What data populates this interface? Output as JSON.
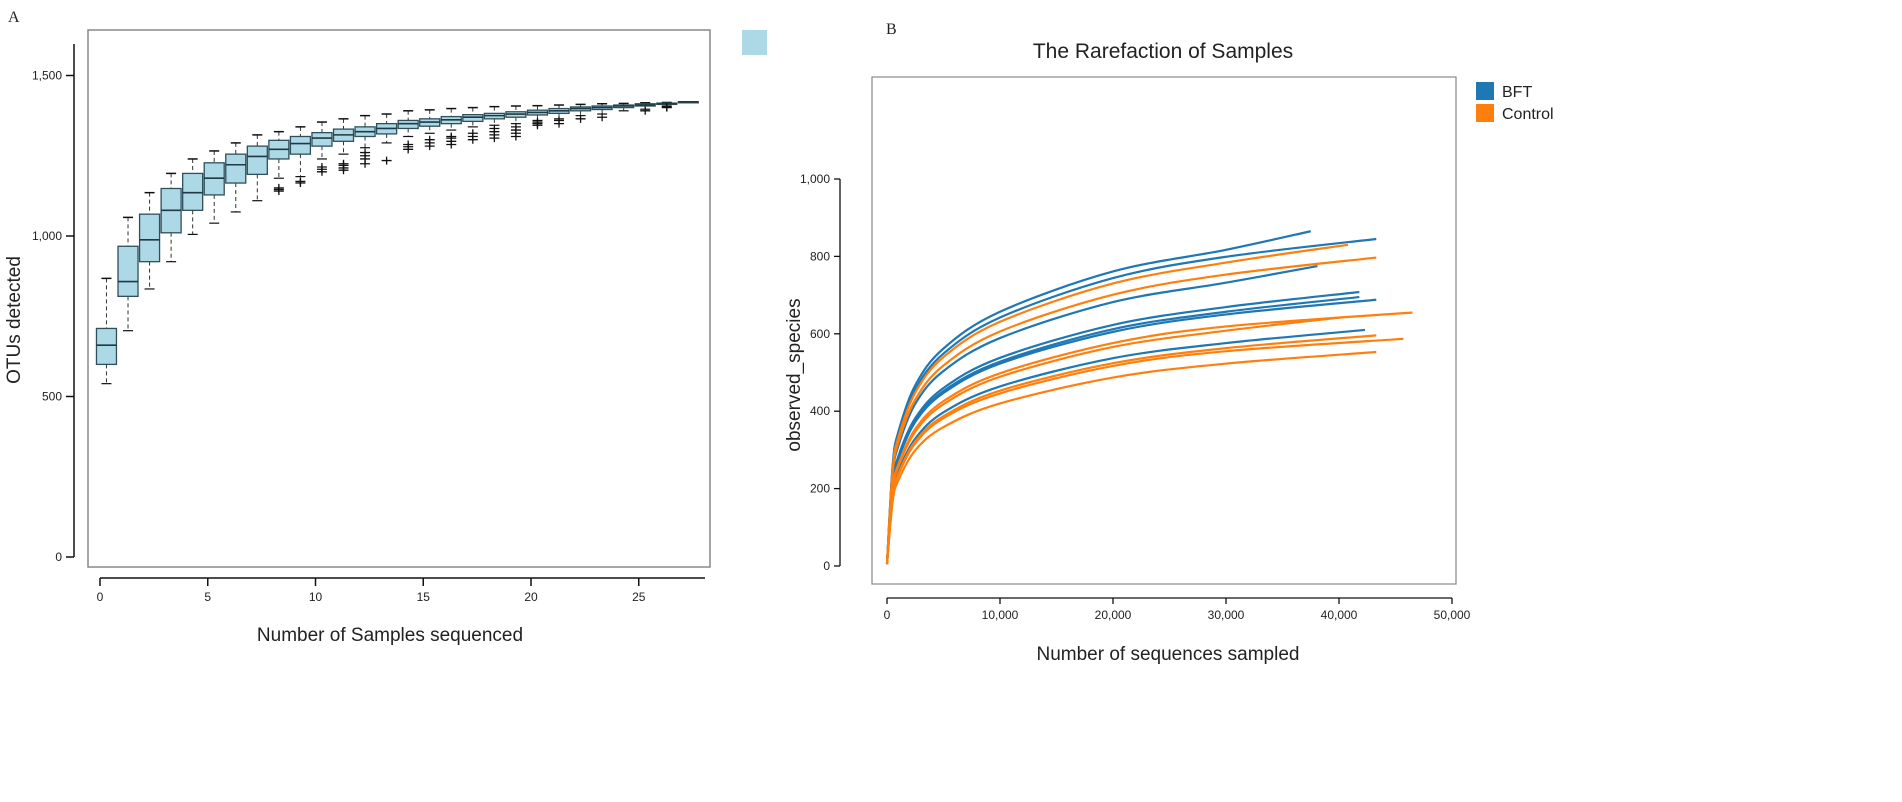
{
  "chart_data": [
    {
      "panel_label": "A",
      "type": "box",
      "title": "",
      "xlabel": "Number of Samples sequenced",
      "ylabel": "OTUs detected",
      "xticks": [
        "0",
        "5",
        "10",
        "15",
        "20",
        "25"
      ],
      "yticks": [
        "0",
        "500",
        "1,000",
        "1,500"
      ],
      "xlim": [
        0,
        28
      ],
      "ylim": [
        0,
        1600
      ],
      "grid": false,
      "box_color": "#add8e6",
      "legend": {
        "position": "top-right",
        "entries": [
          {
            "label": "",
            "color": "#add8e6"
          }
        ]
      },
      "boxes": [
        {
          "x": 0.3,
          "whisker_high": 868,
          "q3": 712,
          "median": 660,
          "q1": 600,
          "whisker_low": 540,
          "outliers": []
        },
        {
          "x": 1.3,
          "whisker_high": 1058,
          "q3": 968,
          "median": 858,
          "q1": 812,
          "whisker_low": 705,
          "outliers": []
        },
        {
          "x": 2.3,
          "whisker_high": 1135,
          "q3": 1068,
          "median": 988,
          "q1": 920,
          "whisker_low": 835,
          "outliers": []
        },
        {
          "x": 3.3,
          "whisker_high": 1195,
          "q3": 1148,
          "median": 1080,
          "q1": 1010,
          "whisker_low": 920,
          "outliers": []
        },
        {
          "x": 4.3,
          "whisker_high": 1240,
          "q3": 1195,
          "median": 1135,
          "q1": 1080,
          "whisker_low": 1005,
          "outliers": []
        },
        {
          "x": 5.3,
          "whisker_high": 1265,
          "q3": 1228,
          "median": 1180,
          "q1": 1128,
          "whisker_low": 1040,
          "outliers": []
        },
        {
          "x": 6.3,
          "whisker_high": 1290,
          "q3": 1255,
          "median": 1222,
          "q1": 1165,
          "whisker_low": 1075,
          "outliers": []
        },
        {
          "x": 7.3,
          "whisker_high": 1315,
          "q3": 1280,
          "median": 1248,
          "q1": 1192,
          "whisker_low": 1110,
          "outliers": []
        },
        {
          "x": 8.3,
          "whisker_high": 1325,
          "q3": 1298,
          "median": 1270,
          "q1": 1240,
          "whisker_low": 1180,
          "outliers": [
            1140,
            1145,
            1150
          ]
        },
        {
          "x": 9.3,
          "whisker_high": 1340,
          "q3": 1310,
          "median": 1288,
          "q1": 1255,
          "whisker_low": 1185,
          "outliers": [
            1165,
            1170
          ]
        },
        {
          "x": 10.3,
          "whisker_high": 1355,
          "q3": 1322,
          "median": 1305,
          "q1": 1280,
          "whisker_low": 1240,
          "outliers": [
            1200,
            1208,
            1215
          ]
        },
        {
          "x": 11.3,
          "whisker_high": 1365,
          "q3": 1333,
          "median": 1315,
          "q1": 1295,
          "whisker_low": 1255,
          "outliers": [
            1205,
            1212,
            1220,
            1225
          ]
        },
        {
          "x": 12.3,
          "whisker_high": 1375,
          "q3": 1340,
          "median": 1325,
          "q1": 1310,
          "whisker_low": 1275,
          "outliers": [
            1225,
            1240,
            1250,
            1260
          ]
        },
        {
          "x": 13.3,
          "whisker_high": 1380,
          "q3": 1350,
          "median": 1335,
          "q1": 1318,
          "whisker_low": 1290,
          "outliers": [
            1235
          ]
        },
        {
          "x": 14.3,
          "whisker_high": 1390,
          "q3": 1360,
          "median": 1350,
          "q1": 1335,
          "whisker_low": 1310,
          "outliers": [
            1270,
            1278,
            1285
          ]
        },
        {
          "x": 15.3,
          "whisker_high": 1393,
          "q3": 1365,
          "median": 1355,
          "q1": 1342,
          "whisker_low": 1320,
          "outliers": [
            1280,
            1290,
            1300
          ]
        },
        {
          "x": 16.3,
          "whisker_high": 1397,
          "q3": 1372,
          "median": 1362,
          "q1": 1350,
          "whisker_low": 1330,
          "outliers": [
            1285,
            1295,
            1305,
            1310
          ]
        },
        {
          "x": 17.3,
          "whisker_high": 1400,
          "q3": 1378,
          "median": 1370,
          "q1": 1357,
          "whisker_low": 1340,
          "outliers": [
            1300,
            1310,
            1320
          ]
        },
        {
          "x": 18.3,
          "whisker_high": 1403,
          "q3": 1382,
          "median": 1375,
          "q1": 1365,
          "whisker_low": 1345,
          "outliers": [
            1305,
            1315,
            1325,
            1335
          ]
        },
        {
          "x": 19.3,
          "whisker_high": 1405,
          "q3": 1387,
          "median": 1380,
          "q1": 1370,
          "whisker_low": 1350,
          "outliers": [
            1310,
            1320,
            1330,
            1340
          ]
        },
        {
          "x": 20.3,
          "whisker_high": 1406,
          "q3": 1392,
          "median": 1385,
          "q1": 1377,
          "whisker_low": 1360,
          "outliers": [
            1345,
            1350,
            1355
          ]
        },
        {
          "x": 21.3,
          "whisker_high": 1408,
          "q3": 1397,
          "median": 1390,
          "q1": 1382,
          "whisker_low": 1365,
          "outliers": [
            1350,
            1360
          ]
        },
        {
          "x": 22.3,
          "whisker_high": 1410,
          "q3": 1402,
          "median": 1397,
          "q1": 1390,
          "whisker_low": 1375,
          "outliers": [
            1365
          ]
        },
        {
          "x": 23.3,
          "whisker_high": 1412,
          "q3": 1405,
          "median": 1400,
          "q1": 1394,
          "whisker_low": 1380,
          "outliers": [
            1370
          ]
        },
        {
          "x": 24.3,
          "whisker_high": 1413,
          "q3": 1408,
          "median": 1405,
          "q1": 1400,
          "whisker_low": 1390,
          "outliers": []
        },
        {
          "x": 25.3,
          "whisker_high": 1415,
          "q3": 1412,
          "median": 1408,
          "q1": 1405,
          "whisker_low": 1395,
          "outliers": [
            1390
          ]
        },
        {
          "x": 26.3,
          "whisker_high": 1416,
          "q3": 1414,
          "median": 1412,
          "q1": 1410,
          "whisker_low": 1405,
          "outliers": [
            1400,
            1402
          ]
        },
        {
          "x": 27.3,
          "whisker_high": 1418,
          "q3": 1418,
          "median": 1418,
          "q1": 1418,
          "whisker_low": 1418,
          "outliers": []
        }
      ]
    },
    {
      "panel_label": "B",
      "type": "line",
      "title": "The Rarefaction of Samples",
      "xlabel": "Number of sequences sampled",
      "ylabel": "observed_species",
      "xticks": [
        "0",
        "10,000",
        "20,000",
        "30,000",
        "40,000",
        "50,000"
      ],
      "yticks": [
        "0",
        "200",
        "400",
        "600",
        "800",
        "1,000"
      ],
      "xlim": [
        0,
        50000
      ],
      "ylim": [
        0,
        1000
      ],
      "grid": false,
      "legend": {
        "position": "top-right outside",
        "entries": [
          {
            "label": "BFT",
            "color": "#1f77b4"
          },
          {
            "label": "Control",
            "color": "#ff7f0e"
          }
        ]
      },
      "series": [
        {
          "group": "BFT",
          "color": "#1f77b4",
          "x": [
            0,
            500,
            1000,
            2500,
            5000,
            10000,
            20000,
            30000,
            37500
          ],
          "y": [
            0,
            260,
            346,
            467,
            562,
            657,
            761,
            817,
            865
          ]
        },
        {
          "group": "BFT",
          "color": "#1f77b4",
          "x": [
            0,
            500,
            1000,
            2500,
            5000,
            10000,
            20000,
            30000,
            43300
          ],
          "y": [
            0,
            254,
            338,
            456,
            549,
            642,
            744,
            799,
            845
          ]
        },
        {
          "group": "BFT",
          "color": "#1f77b4",
          "x": [
            0,
            500,
            1000,
            2500,
            5000,
            10000,
            20000,
            30000,
            38100
          ],
          "y": [
            0,
            233,
            310,
            419,
            504,
            589,
            682,
            732,
            775
          ]
        },
        {
          "group": "BFT",
          "color": "#1f77b4",
          "x": [
            0,
            500,
            1000,
            2500,
            5000,
            10000,
            20000,
            30000,
            41800
          ],
          "y": [
            0,
            212,
            283,
            382,
            460,
            538,
            623,
            669,
            708
          ]
        },
        {
          "group": "BFT",
          "color": "#1f77b4",
          "x": [
            0,
            500,
            1000,
            2500,
            5000,
            10000,
            20000,
            30000,
            41800
          ],
          "y": [
            0,
            209,
            278,
            375,
            452,
            528,
            612,
            657,
            695
          ]
        },
        {
          "group": "BFT",
          "color": "#1f77b4",
          "x": [
            0,
            500,
            1000,
            2500,
            5000,
            10000,
            20000,
            30000,
            43300
          ],
          "y": [
            0,
            206,
            275,
            372,
            447,
            523,
            605,
            650,
            688
          ]
        },
        {
          "group": "BFT",
          "color": "#1f77b4",
          "x": [
            0,
            500,
            1000,
            2500,
            5000,
            10000,
            20000,
            30000,
            42300
          ],
          "y": [
            0,
            183,
            244,
            329,
            397,
            464,
            537,
            576,
            610
          ]
        },
        {
          "group": "Control",
          "color": "#ff7f0e",
          "x": [
            0,
            500,
            1000,
            2500,
            5000,
            10000,
            20000,
            30000,
            40800
          ],
          "y": [
            0,
            249,
            332,
            448,
            540,
            631,
            730,
            784,
            830
          ]
        },
        {
          "group": "Control",
          "color": "#ff7f0e",
          "x": [
            0,
            500,
            1000,
            2500,
            5000,
            10000,
            20000,
            30000,
            43300
          ],
          "y": [
            0,
            239,
            319,
            430,
            518,
            606,
            701,
            753,
            797
          ]
        },
        {
          "group": "Control",
          "color": "#ff7f0e",
          "x": [
            0,
            500,
            1000,
            2500,
            5000,
            10000,
            20000,
            30000,
            40400
          ],
          "y": [
            0,
            193,
            257,
            347,
            418,
            489,
            566,
            608,
            643
          ]
        },
        {
          "group": "Control",
          "color": "#ff7f0e",
          "x": [
            0,
            500,
            1000,
            2500,
            5000,
            10000,
            20000,
            30000,
            46500
          ],
          "y": [
            0,
            197,
            262,
            354,
            426,
            498,
            576,
            619,
            655
          ]
        },
        {
          "group": "Control",
          "color": "#ff7f0e",
          "x": [
            0,
            500,
            1000,
            2500,
            5000,
            10000,
            20000,
            30000,
            43300
          ],
          "y": [
            0,
            179,
            238,
            322,
            387,
            453,
            524,
            563,
            596
          ]
        },
        {
          "group": "Control",
          "color": "#ff7f0e",
          "x": [
            0,
            500,
            1000,
            2500,
            5000,
            10000,
            20000,
            30000,
            45700
          ],
          "y": [
            0,
            176,
            235,
            317,
            382,
            446,
            517,
            555,
            587
          ]
        },
        {
          "group": "Control",
          "color": "#ff7f0e",
          "x": [
            0,
            500,
            1000,
            2500,
            5000,
            10000,
            20000,
            30000,
            43300
          ],
          "y": [
            0,
            166,
            221,
            299,
            359,
            420,
            487,
            523,
            553
          ]
        }
      ]
    }
  ]
}
